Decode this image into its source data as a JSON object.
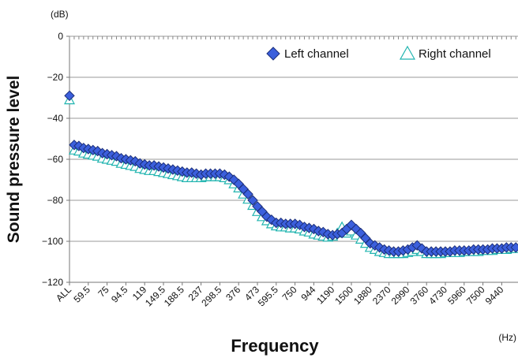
{
  "chart_data": {
    "type": "scatter",
    "y_unit": "(dB)",
    "x_unit": "(Hz)",
    "y_label": "Sound pressure level",
    "x_label": "Frequency",
    "categories": [
      "ALL",
      null,
      null,
      null,
      "59.5",
      null,
      null,
      null,
      "75",
      null,
      null,
      null,
      "94.5",
      null,
      null,
      null,
      "119",
      null,
      null,
      null,
      "149.5",
      null,
      null,
      null,
      "188.5",
      null,
      null,
      null,
      "237",
      null,
      null,
      null,
      "298.5",
      null,
      null,
      null,
      "376",
      null,
      null,
      null,
      "473",
      null,
      null,
      null,
      "595.5",
      null,
      null,
      null,
      "750",
      null,
      null,
      null,
      "944",
      null,
      null,
      null,
      "1190",
      null,
      null,
      null,
      "1500",
      null,
      null,
      null,
      "1880",
      null,
      null,
      null,
      "2370",
      null,
      null,
      null,
      "2990",
      null,
      null,
      null,
      "3760",
      null,
      null,
      null,
      "4730",
      null,
      null,
      null,
      "5960",
      null,
      null,
      null,
      "7500",
      null,
      null,
      null,
      "9440",
      null,
      null,
      null
    ],
    "series": [
      {
        "name": "Left channel",
        "color": "#3b5fdc",
        "marker": "diamond",
        "values": [
          -29,
          -53,
          -53.5,
          -54.5,
          -55,
          -55.5,
          -56,
          -57,
          -57.5,
          -58,
          -58.5,
          -59.5,
          -60,
          -60.5,
          -61,
          -62,
          -62.5,
          -63,
          -63,
          -63.5,
          -64,
          -64.5,
          -65,
          -65.5,
          -66,
          -66.5,
          -66.5,
          -67,
          -67.5,
          -67,
          -67,
          -67,
          -67,
          -67.5,
          -68.5,
          -70,
          -72,
          -74.5,
          -77,
          -80,
          -83,
          -85.5,
          -88,
          -89.5,
          -91,
          -91,
          -91.5,
          -91.5,
          -91.5,
          -92,
          -93,
          -93.5,
          -94,
          -95,
          -95.5,
          -96.5,
          -97,
          -96.5,
          -96,
          -94,
          -92,
          -94,
          -96,
          -98.5,
          -101,
          -102,
          -103,
          -104,
          -104.5,
          -105,
          -105,
          -104.5,
          -104,
          -103,
          -102,
          -103.5,
          -105,
          -105,
          -105,
          -105,
          -105,
          -105,
          -104.5,
          -104.5,
          -104.5,
          -104.5,
          -104,
          -104,
          -104,
          -104,
          -103.5,
          -103.5,
          -103.5,
          -103,
          -103,
          -103
        ]
      },
      {
        "name": "Right channel",
        "color": "#22b5b0",
        "marker": "triangle",
        "values": [
          -31,
          -55.5,
          -56,
          -57,
          -57.5,
          -58,
          -58.5,
          -59.5,
          -60,
          -60.5,
          -61,
          -62,
          -62.5,
          -63,
          -63.5,
          -64.5,
          -65,
          -65.5,
          -65.5,
          -66,
          -66.5,
          -67,
          -67.5,
          -68,
          -68.5,
          -69,
          -69,
          -69,
          -69,
          -68.5,
          -68.5,
          -68.5,
          -68.5,
          -69,
          -70,
          -72,
          -74,
          -77,
          -79.5,
          -82.5,
          -85.5,
          -88,
          -90,
          -91.5,
          -92.5,
          -93,
          -93,
          -93.5,
          -93.5,
          -94,
          -95,
          -95.5,
          -96.5,
          -97,
          -97.5,
          -98,
          -97.5,
          -96,
          -93,
          -96,
          -95,
          -97,
          -99,
          -101,
          -103,
          -104,
          -105,
          -105.5,
          -106,
          -106,
          -106,
          -106,
          -105.5,
          -105,
          -104,
          -105,
          -106,
          -106,
          -106,
          -106,
          -105.5,
          -105.5,
          -105.5,
          -105.5,
          -105,
          -105,
          -105,
          -105,
          -104.5,
          -104.5,
          -104.5,
          -104,
          -104,
          -104,
          -103.5,
          -103.5
        ]
      }
    ],
    "ylim": [
      -120,
      0
    ],
    "yticks": [
      0,
      {
        "value": -20,
        "label": "−20"
      },
      {
        "value": -40,
        "label": "−40"
      },
      {
        "value": -60,
        "label": "−60"
      },
      {
        "value": -80,
        "label": "−80"
      },
      {
        "value": -100,
        "label": "−100"
      },
      {
        "value": -120,
        "label": "−120"
      }
    ],
    "grid": true,
    "legend": "upper right"
  }
}
